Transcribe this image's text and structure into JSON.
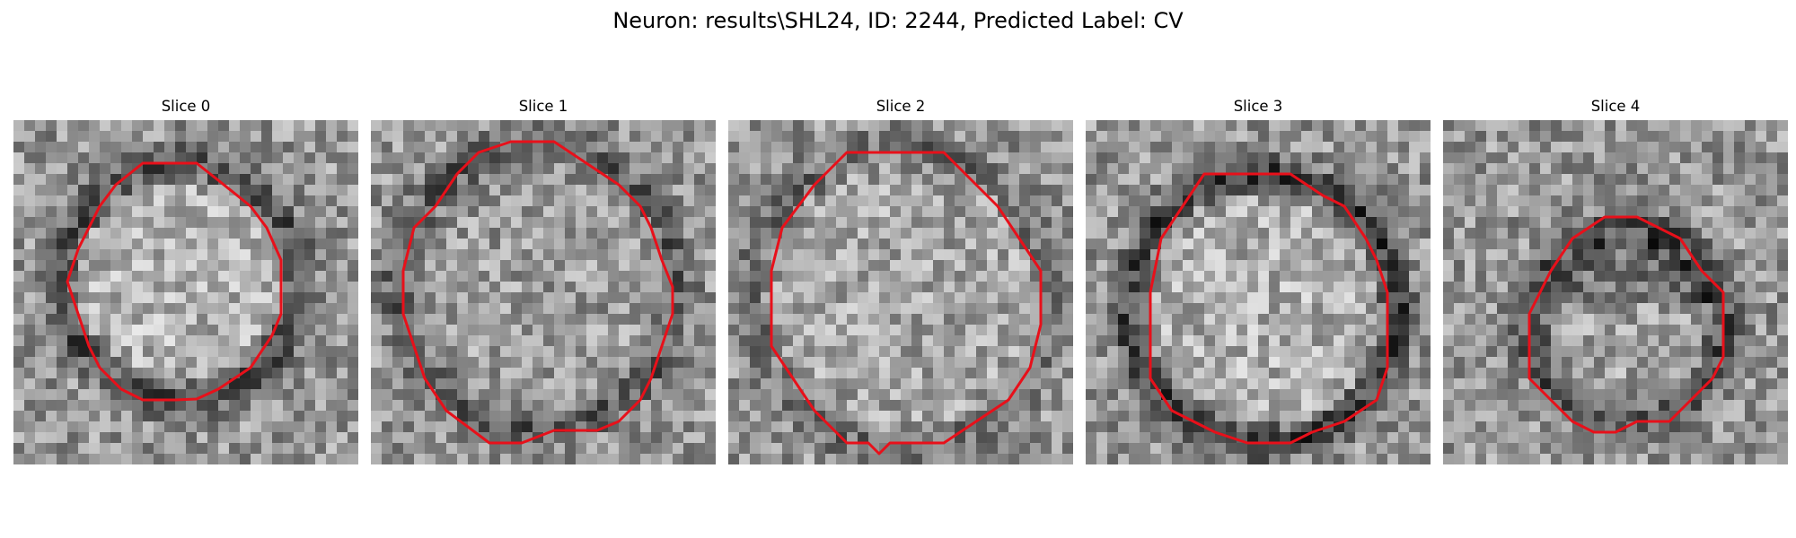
{
  "figure": {
    "title": "Neuron: results\\SHL24, ID: 2244, Predicted Label: CV"
  },
  "colors": {
    "contour": "#e8101a",
    "background": "#ffffff"
  },
  "image_style": {
    "colormap": "grayscale",
    "grid_size": 32
  },
  "slices": [
    {
      "title": "Slice 0",
      "ring": "faint dark ring",
      "interior": "lighter center"
    },
    {
      "title": "Slice 1",
      "ring": "dark ring",
      "interior": "mottled gray"
    },
    {
      "title": "Slice 2",
      "ring": "faint ring",
      "interior": "light gray"
    },
    {
      "title": "Slice 3",
      "ring": "strong dark ring",
      "interior": "lighter center"
    },
    {
      "title": "Slice 4",
      "ring": "dark ring",
      "interior": "smaller dark cell"
    }
  ]
}
